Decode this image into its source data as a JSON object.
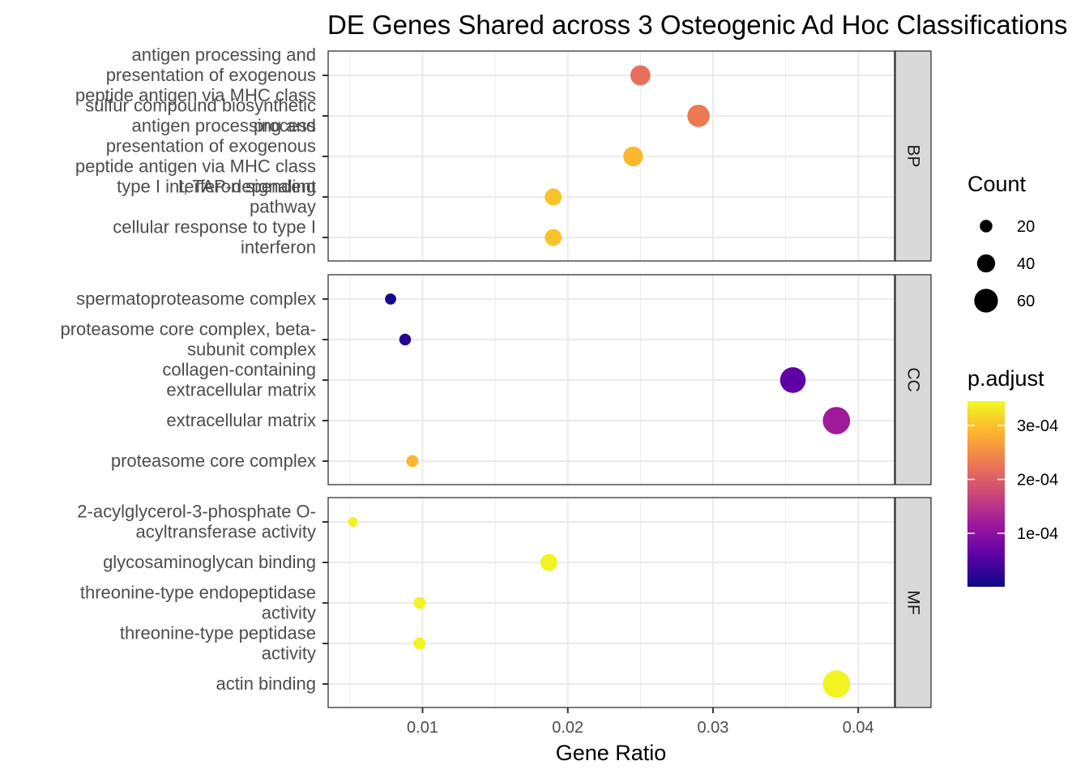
{
  "chart_data": {
    "type": "scatter",
    "title": "DE Genes Shared across 3 Osteogenic Ad Hoc Classifications",
    "xlabel": "Gene Ratio",
    "ylabel": "",
    "xlim": [
      0.0035,
      0.0425
    ],
    "x_ticks": [
      0.01,
      0.02,
      0.03,
      0.04
    ],
    "x_tick_labels": [
      "0.01",
      "0.02",
      "0.03",
      "0.04"
    ],
    "grid": true,
    "legend_placement": "right",
    "facets": [
      {
        "name": "BP",
        "terms": [
          {
            "label": "antigen processing and presentation of exogenous peptide antigen via MHC class",
            "label_lines": [
              "antigen processing and",
              "presentation of exogenous",
              "peptide antigen via MHC class"
            ],
            "gene_ratio": 0.025,
            "count": 47,
            "p_adjust": 0.00022
          },
          {
            "label": "sulfur compound biosynthetic process",
            "label_lines": [
              "sulfur compound biosynthetic",
              "process"
            ],
            "gene_ratio": 0.029,
            "count": 55,
            "p_adjust": 0.00023
          },
          {
            "label": "antigen processing and presentation of exogenous peptide antigen via MHC class I, TAP-dependent",
            "label_lines": [
              "antigen processing and",
              "presentation of exogenous",
              "peptide antigen via MHC class",
              "I, TAP-dependent"
            ],
            "gene_ratio": 0.0245,
            "count": 46,
            "p_adjust": 0.00029
          },
          {
            "label": "type I interferon signaling pathway",
            "label_lines": [
              "type I interferon signaling",
              "pathway"
            ],
            "gene_ratio": 0.019,
            "count": 36,
            "p_adjust": 0.0003
          },
          {
            "label": "cellular response to type I interferon",
            "label_lines": [
              "cellular response to type I",
              "interferon"
            ],
            "gene_ratio": 0.019,
            "count": 36,
            "p_adjust": 0.0003
          }
        ]
      },
      {
        "name": "CC",
        "terms": [
          {
            "label": "spermatoproteasome complex",
            "label_lines": [
              "spermatoproteasome complex"
            ],
            "gene_ratio": 0.0078,
            "count": 15,
            "p_adjust": 5e-06
          },
          {
            "label": "proteasome core complex, beta-subunit complex",
            "label_lines": [
              "proteasome core complex, beta-",
              "subunit complex"
            ],
            "gene_ratio": 0.0088,
            "count": 17,
            "p_adjust": 2e-05
          },
          {
            "label": "collagen-containing extracellular matrix",
            "label_lines": [
              "collagen-containing",
              "extracellular matrix"
            ],
            "gene_ratio": 0.0355,
            "count": 67,
            "p_adjust": 6e-05
          },
          {
            "label": "extracellular matrix",
            "label_lines": [
              "extracellular matrix"
            ],
            "gene_ratio": 0.0385,
            "count": 73,
            "p_adjust": 0.00012
          },
          {
            "label": "proteasome core complex",
            "label_lines": [
              "proteasome core complex"
            ],
            "gene_ratio": 0.0093,
            "count": 18,
            "p_adjust": 0.00029
          }
        ]
      },
      {
        "name": "MF",
        "terms": [
          {
            "label": "2-acylglycerol-3-phosphate O-acyltransferase activity",
            "label_lines": [
              "2-acylglycerol-3-phosphate O-",
              "acyltransferase activity"
            ],
            "gene_ratio": 0.0052,
            "count": 10,
            "p_adjust": 0.00034
          },
          {
            "label": "glycosaminoglycan binding",
            "label_lines": [
              "glycosaminoglycan binding"
            ],
            "gene_ratio": 0.0187,
            "count": 36,
            "p_adjust": 0.00034
          },
          {
            "label": "threonine-type endopeptidase activity",
            "label_lines": [
              "threonine-type endopeptidase",
              "activity"
            ],
            "gene_ratio": 0.0098,
            "count": 18,
            "p_adjust": 0.00034
          },
          {
            "label": "threonine-type peptidase activity",
            "label_lines": [
              "threonine-type peptidase",
              "activity"
            ],
            "gene_ratio": 0.0098,
            "count": 18,
            "p_adjust": 0.00034
          },
          {
            "label": "actin binding",
            "label_lines": [
              "actin binding"
            ],
            "gene_ratio": 0.0385,
            "count": 73,
            "p_adjust": 0.00034
          }
        ]
      }
    ],
    "size_legend": {
      "title": "Count",
      "breaks": [
        20,
        40,
        60
      ],
      "labels": [
        "20",
        "40",
        "60"
      ]
    },
    "color_legend": {
      "title": "p.adjust",
      "min": 1e-06,
      "max": 0.000345,
      "breaks": [
        0.0001,
        0.0002,
        0.0003
      ],
      "labels": [
        "1e-04",
        "2e-04",
        "3e-04"
      ],
      "palette": [
        "#0d0887",
        "#5c01a6",
        "#9c179e",
        "#cc4778",
        "#ed7953",
        "#fdb42f",
        "#f0f921"
      ]
    },
    "colors": {
      "panel_border": "#333333",
      "strip_fill": "#d9d9d9",
      "grid": "#ebebeb"
    }
  }
}
